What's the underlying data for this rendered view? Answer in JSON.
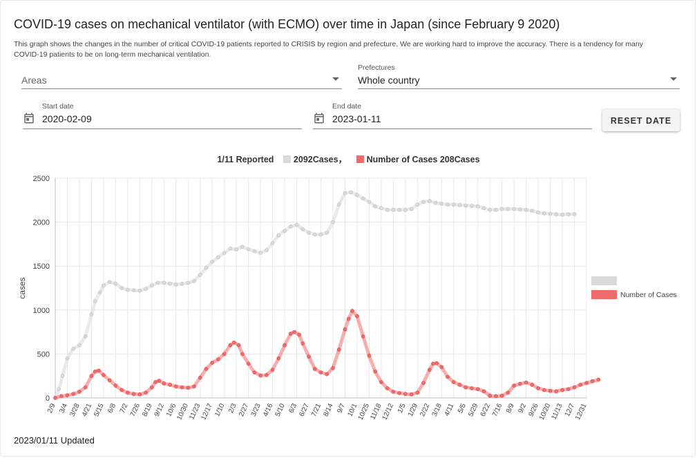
{
  "header": {
    "title": "COVID-19 cases on mechanical ventilator (with ECMO) over time in Japan (since February 9 2020)",
    "description": "This graph shows the changes in the number of critical COVID-19 patients reported to CRISIS by region and prefecture. We are working hard to improve the accuracy. There is a tendency for many COVID-19 patients to be on long-term mechanical ventilation."
  },
  "filters": {
    "areas": {
      "placeholder": "Areas"
    },
    "prefectures": {
      "label": "Prefectures",
      "value": "Whole country"
    }
  },
  "dates": {
    "start": {
      "label": "Start date",
      "value": "2020-02-09",
      "icon": "calendar-icon"
    },
    "end": {
      "label": "End date",
      "value": "2023-01-11",
      "icon": "calendar-icon"
    },
    "reset_label": "RESET DATE"
  },
  "legend_top": {
    "reported": "1/11 Reported",
    "series1": "2092Cases，",
    "series2": "Number of Cases 208Cases"
  },
  "footer": {
    "updated": "2023/01/11 Updated"
  },
  "colors": {
    "gray_series": "#d9d9d9",
    "red_series": "#ef6b6b",
    "grid": "#e8e8e8"
  },
  "chart_data": {
    "type": "line",
    "ylabel": "cases",
    "ylim": [
      0,
      2500
    ],
    "yticks": [
      0,
      500,
      1000,
      1500,
      2000,
      2500
    ],
    "xticks": [
      "2/9",
      "3/4",
      "3/28",
      "4/21",
      "5/15",
      "6/8",
      "7/2",
      "7/26",
      "8/19",
      "9/12",
      "10/6",
      "10/30",
      "11/23",
      "12/17",
      "1/10",
      "2/3",
      "2/27",
      "3/23",
      "4/16",
      "5/10",
      "6/3",
      "6/27",
      "7/21",
      "8/14",
      "9/7",
      "10/1",
      "10/25",
      "11/18",
      "12/12",
      "1/5",
      "1/29",
      "2/22",
      "3/18",
      "4/11",
      "5/5",
      "5/29",
      "6/22",
      "7/16",
      "8/9",
      "9/2",
      "9/26",
      "10/20",
      "11/13",
      "12/7",
      "12/31"
    ],
    "legend": [
      "",
      "Number of Cases"
    ],
    "series": [
      {
        "name": "",
        "color": "#d9d9d9",
        "points": [
          [
            0,
            0
          ],
          [
            0.3,
            100
          ],
          [
            0.6,
            250
          ],
          [
            1,
            450
          ],
          [
            1.5,
            560
          ],
          [
            2,
            600
          ],
          [
            2.5,
            700
          ],
          [
            3,
            950
          ],
          [
            3.3,
            1100
          ],
          [
            3.7,
            1200
          ],
          [
            4,
            1280
          ],
          [
            4.5,
            1320
          ],
          [
            5,
            1300
          ],
          [
            5.5,
            1250
          ],
          [
            6,
            1230
          ],
          [
            6.5,
            1225
          ],
          [
            7,
            1220
          ],
          [
            7.5,
            1240
          ],
          [
            8,
            1280
          ],
          [
            8.5,
            1310
          ],
          [
            9,
            1310
          ],
          [
            9.5,
            1300
          ],
          [
            10,
            1290
          ],
          [
            10.5,
            1300
          ],
          [
            11,
            1310
          ],
          [
            11.5,
            1330
          ],
          [
            12,
            1400
          ],
          [
            12.5,
            1480
          ],
          [
            13,
            1550
          ],
          [
            13.5,
            1600
          ],
          [
            14,
            1650
          ],
          [
            14.5,
            1700
          ],
          [
            15,
            1690
          ],
          [
            15.5,
            1720
          ],
          [
            16,
            1690
          ],
          [
            16.5,
            1670
          ],
          [
            17,
            1650
          ],
          [
            17.5,
            1680
          ],
          [
            18,
            1760
          ],
          [
            18.5,
            1850
          ],
          [
            19,
            1900
          ],
          [
            19.5,
            1950
          ],
          [
            20,
            1970
          ],
          [
            20.5,
            1920
          ],
          [
            21,
            1880
          ],
          [
            21.5,
            1860
          ],
          [
            22,
            1860
          ],
          [
            22.5,
            1880
          ],
          [
            23,
            2000
          ],
          [
            23.5,
            2200
          ],
          [
            24,
            2330
          ],
          [
            24.5,
            2340
          ],
          [
            25,
            2310
          ],
          [
            25.5,
            2270
          ],
          [
            26,
            2230
          ],
          [
            26.5,
            2180
          ],
          [
            27,
            2160
          ],
          [
            27.5,
            2140
          ],
          [
            28,
            2140
          ],
          [
            28.5,
            2140
          ],
          [
            29,
            2140
          ],
          [
            29.5,
            2150
          ],
          [
            30,
            2200
          ],
          [
            30.5,
            2230
          ],
          [
            31,
            2240
          ],
          [
            31.5,
            2220
          ],
          [
            32,
            2210
          ],
          [
            32.5,
            2200
          ],
          [
            33,
            2200
          ],
          [
            33.5,
            2195
          ],
          [
            34,
            2190
          ],
          [
            34.5,
            2185
          ],
          [
            35,
            2180
          ],
          [
            35.5,
            2160
          ],
          [
            36,
            2140
          ],
          [
            36.5,
            2140
          ],
          [
            37,
            2150
          ],
          [
            37.5,
            2150
          ],
          [
            38,
            2150
          ],
          [
            38.5,
            2145
          ],
          [
            39,
            2140
          ],
          [
            39.5,
            2130
          ],
          [
            40,
            2110
          ],
          [
            40.5,
            2100
          ],
          [
            41,
            2095
          ],
          [
            41.5,
            2090
          ],
          [
            42,
            2085
          ],
          [
            42.5,
            2090
          ],
          [
            43,
            2092
          ]
        ]
      },
      {
        "name": "Number of Cases",
        "color": "#ef6b6b",
        "points": [
          [
            0,
            0
          ],
          [
            0.5,
            20
          ],
          [
            1,
            30
          ],
          [
            1.5,
            45
          ],
          [
            2,
            70
          ],
          [
            2.5,
            120
          ],
          [
            3,
            250
          ],
          [
            3.3,
            300
          ],
          [
            3.6,
            310
          ],
          [
            4,
            260
          ],
          [
            4.5,
            200
          ],
          [
            5,
            140
          ],
          [
            5.5,
            90
          ],
          [
            6,
            60
          ],
          [
            6.5,
            45
          ],
          [
            7,
            40
          ],
          [
            7.5,
            60
          ],
          [
            8,
            120
          ],
          [
            8.3,
            180
          ],
          [
            8.6,
            195
          ],
          [
            9,
            165
          ],
          [
            9.5,
            150
          ],
          [
            10,
            130
          ],
          [
            10.5,
            120
          ],
          [
            11,
            115
          ],
          [
            11.5,
            130
          ],
          [
            12,
            230
          ],
          [
            12.5,
            330
          ],
          [
            13,
            400
          ],
          [
            13.5,
            440
          ],
          [
            14,
            500
          ],
          [
            14.5,
            600
          ],
          [
            14.8,
            630
          ],
          [
            15.2,
            600
          ],
          [
            15.5,
            500
          ],
          [
            16,
            390
          ],
          [
            16.5,
            290
          ],
          [
            17,
            255
          ],
          [
            17.5,
            260
          ],
          [
            18,
            320
          ],
          [
            18.5,
            450
          ],
          [
            19,
            600
          ],
          [
            19.5,
            730
          ],
          [
            19.8,
            750
          ],
          [
            20.2,
            720
          ],
          [
            20.5,
            620
          ],
          [
            21,
            470
          ],
          [
            21.5,
            330
          ],
          [
            22,
            290
          ],
          [
            22.5,
            270
          ],
          [
            23,
            340
          ],
          [
            23.5,
            550
          ],
          [
            24,
            780
          ],
          [
            24.3,
            900
          ],
          [
            24.6,
            990
          ],
          [
            25,
            930
          ],
          [
            25.5,
            700
          ],
          [
            26,
            480
          ],
          [
            26.5,
            300
          ],
          [
            27,
            180
          ],
          [
            27.5,
            110
          ],
          [
            28,
            70
          ],
          [
            28.5,
            55
          ],
          [
            29,
            45
          ],
          [
            29.5,
            40
          ],
          [
            30,
            60
          ],
          [
            30.5,
            170
          ],
          [
            31,
            320
          ],
          [
            31.3,
            390
          ],
          [
            31.6,
            395
          ],
          [
            32,
            350
          ],
          [
            32.5,
            240
          ],
          [
            33,
            180
          ],
          [
            33.5,
            150
          ],
          [
            34,
            120
          ],
          [
            34.5,
            110
          ],
          [
            35,
            100
          ],
          [
            35.5,
            75
          ],
          [
            36,
            25
          ],
          [
            36.5,
            20
          ],
          [
            37,
            25
          ],
          [
            37.5,
            60
          ],
          [
            38,
            140
          ],
          [
            38.5,
            160
          ],
          [
            39,
            175
          ],
          [
            39.5,
            150
          ],
          [
            40,
            110
          ],
          [
            40.5,
            90
          ],
          [
            41,
            80
          ],
          [
            41.5,
            75
          ],
          [
            42,
            90
          ],
          [
            42.5,
            100
          ],
          [
            43,
            120
          ],
          [
            43.5,
            150
          ],
          [
            44,
            170
          ],
          [
            44.5,
            190
          ],
          [
            45,
            208
          ]
        ]
      }
    ]
  }
}
